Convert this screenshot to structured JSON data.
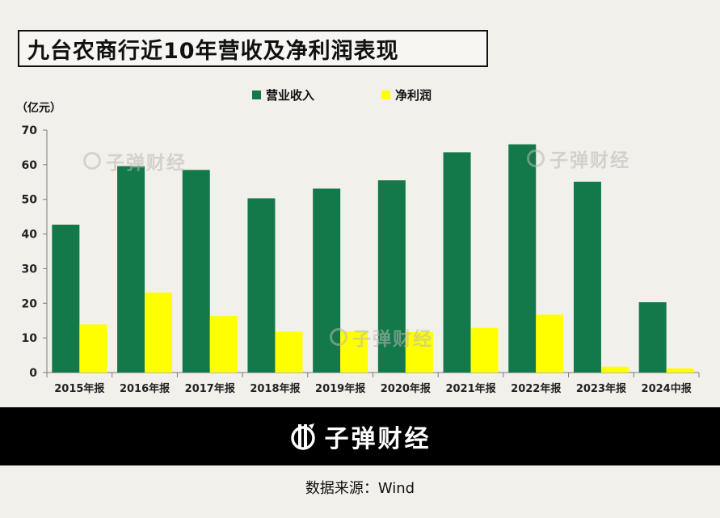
{
  "title": "九台农商行近10年营收及净利润表现",
  "brand": "子弹财经",
  "source": "数据来源：Wind",
  "chart_data": {
    "type": "bar",
    "unit_label": "（亿元）",
    "categories": [
      "2015年报",
      "2016年报",
      "2017年报",
      "2018年报",
      "2019年报",
      "2020年报",
      "2021年报",
      "2022年报",
      "2023年报",
      "2024中报"
    ],
    "series": [
      {
        "name": "营业收入",
        "color": "#13794a",
        "values": [
          42.7,
          59.6,
          58.5,
          50.3,
          53.1,
          55.5,
          63.6,
          65.9,
          55.1,
          20.3
        ]
      },
      {
        "name": "净利润",
        "color": "#ffff00",
        "values": [
          13.9,
          23.1,
          16.3,
          11.8,
          11.9,
          11.7,
          12.9,
          16.7,
          1.7,
          1.2
        ]
      }
    ],
    "ylim": [
      0,
      70
    ],
    "yticks": [
      0,
      10,
      20,
      30,
      40,
      50,
      60,
      70
    ],
    "legend_position": "top-center",
    "grid": false
  }
}
